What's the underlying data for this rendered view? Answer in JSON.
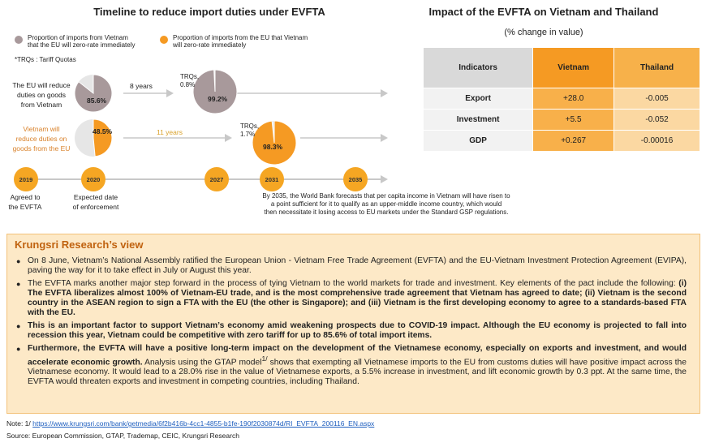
{
  "left": {
    "title": "Timeline to reduce import duties under EVFTA",
    "legend": [
      {
        "text_1": "Proportion of imports from Vietnam",
        "text_2": "that the EU will zero-rate immediately",
        "color": "#a8999b"
      },
      {
        "text_1": "Proportion of imports from the EU that Vietnam",
        "text_2": "will zero-rate immediately",
        "color": "#f59a23"
      }
    ],
    "trq_note": "*TRQs : Tariff Quotas",
    "row1": {
      "label_lines": [
        "The EU will reduce",
        "duties on goods",
        "from Vietnam"
      ],
      "pie_start_pct": "85.6%",
      "years": "8 years",
      "trq_lines": [
        "TRQs,",
        "0.8%"
      ],
      "pie_end_pct": "99.2%",
      "start_share": 0.856,
      "end_share": 0.992
    },
    "row2": {
      "label_lines": [
        "Vietnam will",
        "reduce duties on",
        "goods from the EU"
      ],
      "pie_start_pct": "48.5%",
      "years": "11 years",
      "trq_lines": [
        "TRQs,",
        "1.7%"
      ],
      "pie_end_pct": "98.3%",
      "start_share": 0.485,
      "end_share": 0.983
    },
    "timeline": {
      "years": [
        "2019",
        "2020",
        "2027",
        "2031",
        "2035"
      ],
      "label_2019": [
        "Agreed to",
        "the EVFTA"
      ],
      "label_2020": [
        "Expected date",
        "of enforcement"
      ],
      "forecast": [
        "By 2035, the World Bank forecasts that per capita income in Vietnam will have risen to",
        "a point sufficient for it to qualify as an upper-middle income country, which would",
        "then necessitate it losing access to EU markets under the Standard GSP regulations."
      ]
    }
  },
  "right": {
    "title": "Impact of the EVFTA on Vietnam and Thailand",
    "subtitle": "(% change in value)",
    "headers": [
      "Indicators",
      "Vietnam",
      "Thailand"
    ],
    "rows": [
      [
        "Export",
        "+28.0",
        "-0.005"
      ],
      [
        "Investment",
        "+5.5",
        "-0.052"
      ],
      [
        "GDP",
        "+0.267",
        "-0.00016"
      ]
    ]
  },
  "view": {
    "title": "Krungsri Research’s view",
    "b1": "On 8 June, Vietnam’s National Assembly ratified the European Union - Vietnam Free Trade Agreement (EVFTA) and the EU-Vietnam Investment Protection Agreement (EVIPA), paving the way for it to take effect in July or August this year.",
    "b2_plain": "The EVFTA marks another major step forward in the process of tying Vietnam to the world markets for trade and investment. Key elements of the pact include the following: ",
    "b2_bold": "(i) The EVFTA liberalizes almost 100% of Vietnam-EU trade, and is the most comprehensive trade agreement that Vietnam has agreed to date; (ii) Vietnam is the second country in the ASEAN region to sign a FTA with the EU (the other is Singapore); and (iii) Vietnam is the first developing economy to agree to a standards-based FTA with the EU.",
    "b3_bold": "This is an important factor to support Vietnam’s economy amid weakening prospects due to COVID-19 impact. Although the EU economy is projected to fall into recession this year, Vietnam could be competitive with zero tariff for up to 85.6% of total import items.",
    "b4_bold": "Furthermore, the EVFTA will have a positive long-term impact on the development of the Vietnamese economy, especially on exports and investment, and would accelerate economic growth.",
    "b4_plain_a": " Analysis using the GTAP model",
    "b4_sup": "1/",
    "b4_plain_b": " shows that exempting all Vietnamese imports to the EU from customs duties will have positive impact across the Vietnamese economy. It would lead to a 28.0% rise in the value of Vietnamese exports, a 5.5% increase in investment, and lift economic growth by 0.3 ppt. At the same time, the EVFTA would threaten exports and investment in competing countries, including Thailand."
  },
  "footer": {
    "note_prefix": "Note: 1/ ",
    "note_link": "https://www.krungsri.com/bank/getmedia/6f2b416b-4cc1-4855-b1fe-190f2030874d/RI_EVFTA_200116_EN.aspx",
    "source": "Source: European Commission, GTAP, Trademap, CEIC, Krungsri Research"
  },
  "colors": {
    "grey_pie": "#a8999b",
    "orange_pie": "#f59a23",
    "pie_bg": "#e6e6e6",
    "arrow": "#c8c8c8"
  }
}
